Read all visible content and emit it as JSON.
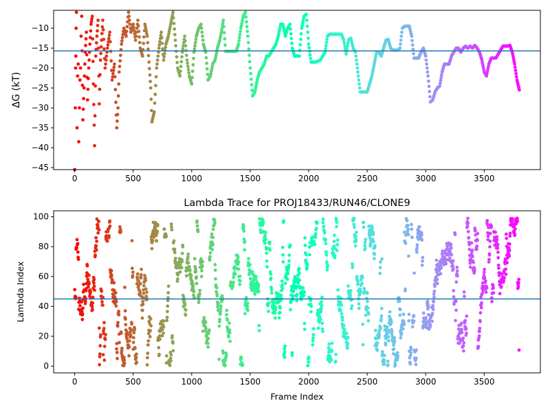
{
  "chart_data": [
    {
      "type": "scatter",
      "title": "",
      "xlabel": "",
      "ylabel": "ΔG (kT)",
      "xlim": [
        -180,
        3980
      ],
      "ylim": [
        -45.5,
        -5.5
      ],
      "xticks": [
        0,
        500,
        1000,
        1500,
        2000,
        2500,
        3000,
        3500
      ],
      "yticks": [
        -45,
        -40,
        -35,
        -30,
        -25,
        -20,
        -15,
        -10
      ],
      "reference_line": {
        "y": -15.7,
        "color": "#1f77b4"
      },
      "color_mapping": "rainbow colormap by frame index (red at frame 0 to violet at frame 3800)",
      "series": [
        {
          "points": [
            [
              0,
              -45.5
            ],
            [
              5,
              -30
            ],
            [
              8,
              -20
            ],
            [
              10,
              -17
            ],
            [
              12,
              -10
            ],
            [
              15,
              -6
            ],
            [
              20,
              -35
            ],
            [
              25,
              -22
            ],
            [
              30,
              -19
            ],
            [
              35,
              -38.5
            ],
            [
              40,
              -30
            ],
            [
              45,
              -23
            ],
            [
              50,
              -20
            ],
            [
              55,
              -12
            ],
            [
              60,
              -7
            ],
            [
              70,
              -33
            ],
            [
              80,
              -25
            ],
            [
              90,
              -16
            ],
            [
              100,
              -11
            ],
            [
              110,
              -28
            ],
            [
              120,
              -20
            ],
            [
              130,
              -14
            ],
            [
              140,
              -9
            ],
            [
              150,
              -7
            ],
            [
              160,
              -24
            ],
            [
              170,
              -39.5
            ],
            [
              180,
              -17
            ],
            [
              190,
              -12
            ],
            [
              200,
              -8
            ],
            [
              210,
              -29
            ],
            [
              220,
              -18
            ],
            [
              230,
              -13
            ],
            [
              240,
              -8
            ],
            [
              260,
              -20
            ],
            [
              280,
              -15
            ],
            [
              300,
              -11
            ],
            [
              320,
              -23
            ],
            [
              340,
              -19
            ],
            [
              360,
              -35
            ],
            [
              370,
              -30
            ],
            [
              380,
              -21
            ],
            [
              400,
              -14
            ],
            [
              420,
              -10
            ],
            [
              440,
              -12
            ],
            [
              460,
              -6
            ],
            [
              480,
              -11
            ],
            [
              500,
              -9
            ],
            [
              520,
              -13
            ],
            [
              540,
              -8
            ],
            [
              560,
              -15
            ],
            [
              580,
              -17
            ],
            [
              600,
              -9
            ],
            [
              620,
              -12
            ],
            [
              650,
              -25
            ],
            [
              660,
              -33.5
            ],
            [
              680,
              -31
            ],
            [
              700,
              -20
            ],
            [
              720,
              -15
            ],
            [
              740,
              -11
            ],
            [
              760,
              -18
            ],
            [
              780,
              -14
            ],
            [
              800,
              -12
            ],
            [
              820,
              -9
            ],
            [
              840,
              -6
            ],
            [
              860,
              -13
            ],
            [
              880,
              -20
            ],
            [
              900,
              -22
            ],
            [
              920,
              -16
            ],
            [
              940,
              -12
            ],
            [
              960,
              -18
            ],
            [
              980,
              -22
            ],
            [
              1000,
              -24
            ],
            [
              1020,
              -16
            ],
            [
              1040,
              -12
            ],
            [
              1060,
              -10
            ],
            [
              1080,
              -9
            ],
            [
              1100,
              -14
            ],
            [
              1120,
              -16
            ],
            [
              1140,
              -23
            ],
            [
              1160,
              -22
            ],
            [
              1180,
              -19
            ],
            [
              1200,
              -18
            ],
            [
              1220,
              -15
            ],
            [
              1240,
              -13
            ],
            [
              1260,
              -10
            ],
            [
              1270,
              -8
            ],
            [
              1290,
              -15.8
            ],
            [
              1320,
              -15.8
            ],
            [
              1350,
              -15.8
            ],
            [
              1380,
              -15.8
            ],
            [
              1400,
              -14
            ],
            [
              1420,
              -10
            ],
            [
              1440,
              -7
            ],
            [
              1460,
              -6
            ],
            [
              1480,
              -12
            ],
            [
              1500,
              -20
            ],
            [
              1520,
              -27
            ],
            [
              1540,
              -26
            ],
            [
              1560,
              -23
            ],
            [
              1580,
              -21
            ],
            [
              1600,
              -20
            ],
            [
              1620,
              -19
            ],
            [
              1640,
              -17
            ],
            [
              1660,
              -17
            ],
            [
              1700,
              -15
            ],
            [
              1720,
              -14
            ],
            [
              1740,
              -12
            ],
            [
              1760,
              -9
            ],
            [
              1780,
              -9
            ],
            [
              1800,
              -12
            ],
            [
              1820,
              -10
            ],
            [
              1840,
              -9
            ],
            [
              1860,
              -15
            ],
            [
              1880,
              -17
            ],
            [
              1920,
              -17
            ],
            [
              1940,
              -10
            ],
            [
              1960,
              -7
            ],
            [
              1980,
              -6.5
            ],
            [
              2000,
              -14
            ],
            [
              2020,
              -18.5
            ],
            [
              2060,
              -18.5
            ],
            [
              2100,
              -18
            ],
            [
              2140,
              -16
            ],
            [
              2160,
              -12
            ],
            [
              2180,
              -11.5
            ],
            [
              2230,
              -11.5
            ],
            [
              2280,
              -11.5
            ],
            [
              2300,
              -13
            ],
            [
              2320,
              -16.5
            ],
            [
              2340,
              -13
            ],
            [
              2360,
              -12.5
            ],
            [
              2380,
              -15
            ],
            [
              2400,
              -16
            ],
            [
              2420,
              -21
            ],
            [
              2440,
              -26
            ],
            [
              2470,
              -26
            ],
            [
              2500,
              -26
            ],
            [
              2520,
              -24
            ],
            [
              2540,
              -22
            ],
            [
              2560,
              -19
            ],
            [
              2580,
              -16
            ],
            [
              2600,
              -16
            ],
            [
              2620,
              -17
            ],
            [
              2640,
              -15
            ],
            [
              2660,
              -13
            ],
            [
              2680,
              -12.8
            ],
            [
              2700,
              -15
            ],
            [
              2720,
              -15.5
            ],
            [
              2760,
              -15.5
            ],
            [
              2780,
              -15
            ],
            [
              2800,
              -10
            ],
            [
              2820,
              -9.5
            ],
            [
              2860,
              -9.5
            ],
            [
              2880,
              -12
            ],
            [
              2900,
              -17.5
            ],
            [
              2940,
              -17.5
            ],
            [
              2960,
              -16
            ],
            [
              2980,
              -15
            ],
            [
              3000,
              -17
            ],
            [
              3020,
              -22
            ],
            [
              3040,
              -28.5
            ],
            [
              3060,
              -28
            ],
            [
              3080,
              -26
            ],
            [
              3100,
              -25
            ],
            [
              3120,
              -24.5
            ],
            [
              3140,
              -21
            ],
            [
              3160,
              -19
            ],
            [
              3200,
              -19
            ],
            [
              3220,
              -17
            ],
            [
              3240,
              -16
            ],
            [
              3260,
              -15
            ],
            [
              3280,
              -15
            ],
            [
              3300,
              -16
            ],
            [
              3320,
              -15
            ],
            [
              3340,
              -14.5
            ],
            [
              3360,
              -15
            ],
            [
              3380,
              -14.5
            ],
            [
              3400,
              -15
            ],
            [
              3420,
              -14.3
            ],
            [
              3440,
              -15
            ],
            [
              3460,
              -16
            ],
            [
              3480,
              -18
            ],
            [
              3500,
              -21
            ],
            [
              3520,
              -22
            ],
            [
              3540,
              -19
            ],
            [
              3560,
              -17.5
            ],
            [
              3600,
              -17.5
            ],
            [
              3620,
              -16.5
            ],
            [
              3640,
              -15.5
            ],
            [
              3660,
              -14.5
            ],
            [
              3700,
              -14.5
            ],
            [
              3720,
              -14.3
            ],
            [
              3740,
              -16
            ],
            [
              3760,
              -19
            ],
            [
              3780,
              -23
            ],
            [
              3800,
              -25.5
            ]
          ]
        }
      ]
    },
    {
      "type": "scatter",
      "title": "Lambda Trace for PROJ18433/RUN46/CLONE9",
      "xlabel": "Frame Index",
      "ylabel": "Lambda Index",
      "xlim": [
        -180,
        3980
      ],
      "ylim": [
        -4.5,
        104
      ],
      "xticks": [
        0,
        500,
        1000,
        1500,
        2000,
        2500,
        3000,
        3500
      ],
      "yticks": [
        0,
        20,
        40,
        60,
        80,
        100
      ],
      "reference_line": {
        "y": 45,
        "color": "#1f77b4"
      },
      "color_mapping": "rainbow colormap by frame index (red at frame 0 to violet at frame 3800)",
      "series": [
        {
          "points_description": "dense per-frame trace, about 3800 frames, values spread from 0 to 99",
          "num_frames": 3800,
          "y_range": [
            0,
            99
          ]
        }
      ]
    }
  ]
}
